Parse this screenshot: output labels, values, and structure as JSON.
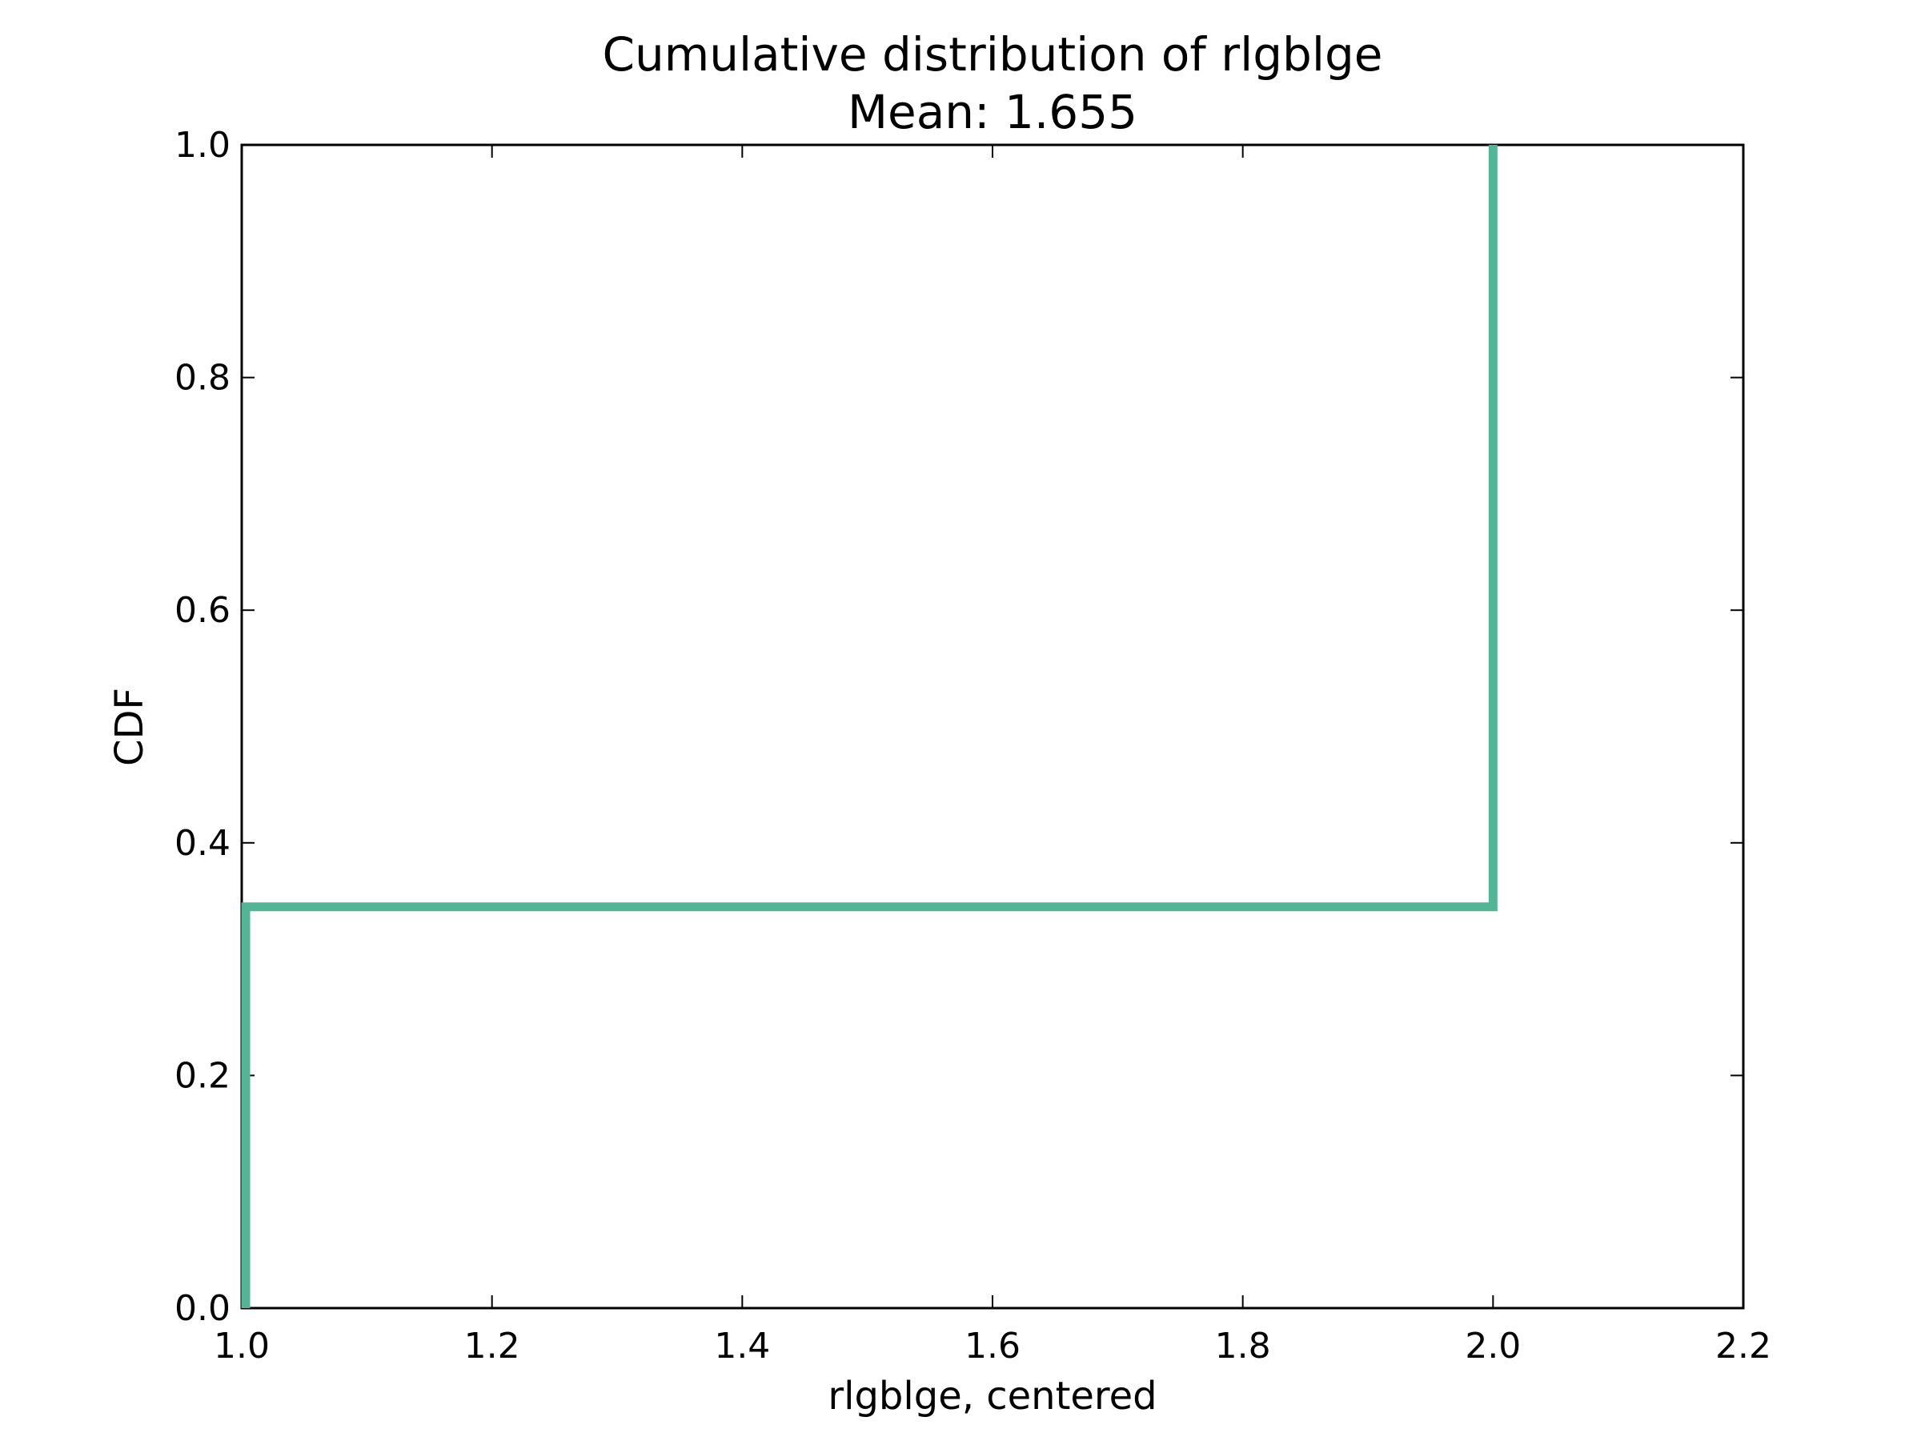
{
  "chart_data": {
    "type": "line",
    "title": "Cumulative distribution of rlgblge",
    "subtitle": "Mean: 1.655",
    "xlabel": "rlgblge, centered",
    "ylabel": "CDF",
    "xlim": [
      1.0,
      2.2
    ],
    "ylim": [
      0.0,
      1.0
    ],
    "x_ticks": [
      1.0,
      1.2,
      1.4,
      1.6,
      1.8,
      2.0,
      2.2
    ],
    "x_tick_labels": [
      "1.0",
      "1.2",
      "1.4",
      "1.6",
      "1.8",
      "2.0",
      "2.2"
    ],
    "y_ticks": [
      0.0,
      0.2,
      0.4,
      0.6,
      0.8,
      1.0
    ],
    "y_tick_labels": [
      "0.0",
      "0.2",
      "0.4",
      "0.6",
      "0.8",
      "1.0"
    ],
    "grid": false,
    "line_color": "#52b596",
    "series": [
      {
        "step": true,
        "x": [
          1.0,
          1.0,
          2.0,
          2.0
        ],
        "y": [
          0.0,
          0.345,
          0.345,
          1.0
        ]
      }
    ]
  }
}
